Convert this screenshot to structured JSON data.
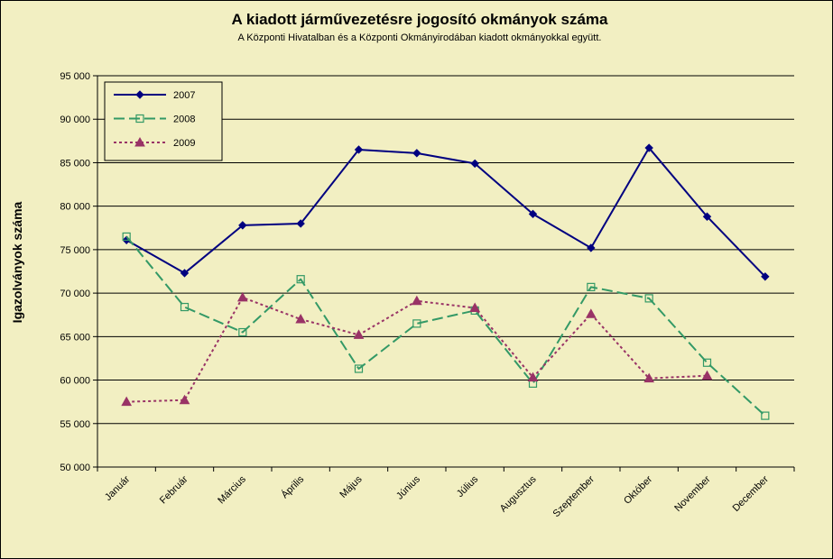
{
  "chart_data": {
    "type": "line",
    "title": "A  kiadott járművezetésre  jogosító okmányok száma",
    "subtitle": "A  Központi Hivatalban és a Központi Okmányirodában kiadott okmányokkal együtt.",
    "xlabel": "",
    "ylabel": "Igazolványok száma",
    "ylim": [
      50000,
      95000
    ],
    "yticks": [
      50000,
      55000,
      60000,
      65000,
      70000,
      75000,
      80000,
      85000,
      90000,
      95000
    ],
    "ytick_labels": [
      "50 000",
      "55 000",
      "60 000",
      "65 000",
      "70 000",
      "75 000",
      "80 000",
      "85 000",
      "90 000",
      "95 000"
    ],
    "grid": "horizontal",
    "legend_position": "top-left",
    "categories": [
      "Január",
      "Február",
      "Március",
      "Április",
      "Május",
      "Június",
      "Július",
      "Augusztus",
      "Szeptember",
      "Október",
      "November",
      "December"
    ],
    "series": [
      {
        "name": "2007",
        "color": "#000080",
        "marker": "diamond",
        "dash": "solid",
        "values": [
          76100,
          72300,
          77800,
          78000,
          86500,
          86100,
          84900,
          79100,
          75200,
          86700,
          78800,
          71900
        ]
      },
      {
        "name": "2008",
        "color": "#339966",
        "marker": "square-open",
        "dash": "long-dash",
        "values": [
          76500,
          68400,
          65500,
          71600,
          61300,
          66500,
          68000,
          59600,
          70700,
          69400,
          62000,
          55900
        ]
      },
      {
        "name": "2009",
        "color": "#993366",
        "marker": "triangle",
        "dash": "dotted",
        "values": [
          57500,
          57700,
          69500,
          67000,
          65200,
          69100,
          68300,
          60300,
          67600,
          60200,
          60500,
          null
        ]
      }
    ]
  }
}
